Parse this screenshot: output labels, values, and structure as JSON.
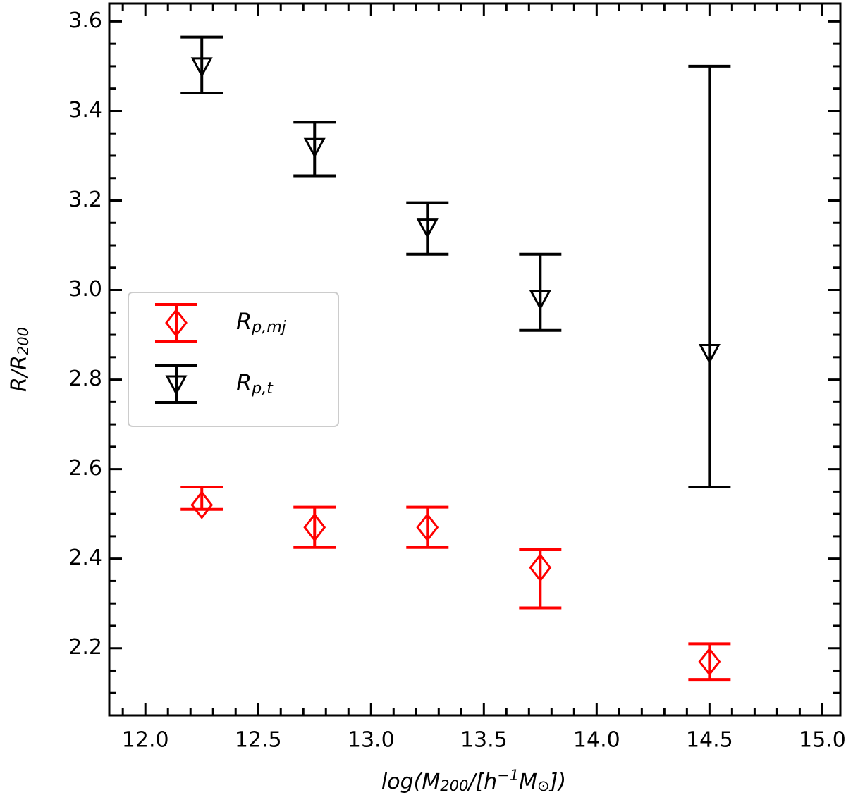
{
  "chart_data": {
    "type": "errorbar",
    "xlabel_parts": [
      "log(M",
      "200",
      "/[h",
      "−1",
      "M",
      "⊙",
      "])"
    ],
    "xlabel_shifts": [
      "base",
      "sub",
      "base",
      "sup",
      "base",
      "sub",
      "base"
    ],
    "ylabel_parts": [
      "R/R",
      "200"
    ],
    "ylabel_shifts": [
      "base",
      "sub"
    ],
    "xlim": [
      11.84,
      15.08
    ],
    "ylim": [
      2.05,
      3.64
    ],
    "xticks": [
      {
        "value": 12.0,
        "label": "12.0"
      },
      12.5,
      {
        "value": 13.0,
        "label": "13.0"
      },
      13.5,
      {
        "value": 14.0,
        "label": "14.0"
      },
      14.5,
      {
        "value": 15.0,
        "label": "15.0"
      }
    ],
    "yticks": [
      2.2,
      2.4,
      2.6,
      2.8,
      {
        "value": 3.0,
        "label": "3.0"
      },
      3.2,
      3.4,
      3.6
    ],
    "xminorticks": [
      11.9,
      12.1,
      12.2,
      12.3,
      12.4,
      12.6,
      12.7,
      12.8,
      12.9,
      13.1,
      13.2,
      13.3,
      13.4,
      13.6,
      13.7,
      13.8,
      13.9,
      14.1,
      14.2,
      14.3,
      14.4,
      14.6,
      14.7,
      14.8,
      14.9
    ],
    "yminorticks": [
      2.1,
      2.15,
      2.25,
      2.3,
      2.35,
      2.45,
      2.5,
      2.55,
      2.65,
      2.7,
      2.75,
      2.85,
      2.9,
      2.95,
      3.05,
      3.1,
      3.15,
      3.25,
      3.3,
      3.35,
      3.45,
      3.5,
      3.55
    ],
    "legend": "center-left",
    "series": [
      {
        "name": "R",
        "name_sub": "p,mj",
        "color": "#ff0000",
        "marker": "diamond",
        "x": [
          12.25,
          12.75,
          13.25,
          13.75,
          14.5
        ],
        "values": [
          2.52,
          2.47,
          2.47,
          2.38,
          2.17
        ],
        "yerr_minus": [
          0.01,
          0.045,
          0.045,
          0.09,
          0.04
        ],
        "yerr_plus": [
          0.04,
          0.045,
          0.045,
          0.04,
          0.04
        ]
      },
      {
        "name": "R",
        "name_sub": "p,t",
        "color": "#000000",
        "marker": "triangle-down",
        "x": [
          12.25,
          12.75,
          13.25,
          13.75,
          14.5
        ],
        "values": [
          3.5,
          3.32,
          3.14,
          2.98,
          2.86
        ],
        "yerr_minus": [
          0.06,
          0.065,
          0.06,
          0.07,
          0.3
        ],
        "yerr_plus": [
          0.065,
          0.055,
          0.055,
          0.1,
          0.64
        ]
      }
    ]
  }
}
